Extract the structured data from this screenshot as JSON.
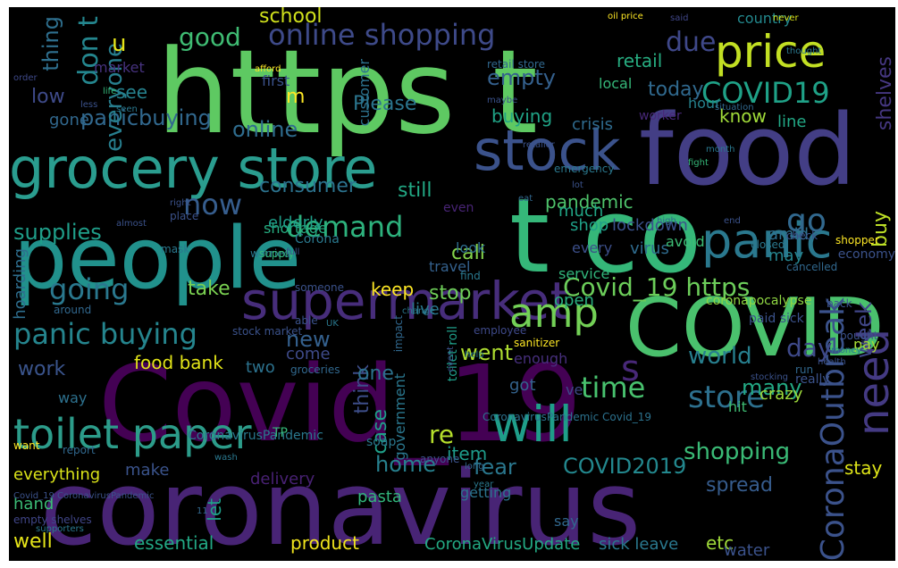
{
  "words": [
    {
      "text": "Covid_19",
      "color": "#440154"
    },
    {
      "text": "coronavirus",
      "color": "#482475"
    },
    {
      "text": "https t",
      "color": "#5ec962"
    },
    {
      "text": "food",
      "color": "#433e85"
    },
    {
      "text": "t co",
      "color": "#35b779"
    },
    {
      "text": "people",
      "color": "#21918c"
    },
    {
      "text": "grocery store",
      "color": "#2a9d8f"
    },
    {
      "text": "COVID",
      "color": "#4ac16d"
    },
    {
      "text": "stock",
      "color": "#3b528b"
    },
    {
      "text": "supermarket",
      "color": "#472d7b"
    },
    {
      "text": "price",
      "color": "#c2df23"
    },
    {
      "text": "toilet paper",
      "color": "#2c9c8a"
    },
    {
      "text": "will",
      "color": "#1f9e89"
    },
    {
      "text": "panic",
      "color": "#2a788e"
    },
    {
      "text": "amp",
      "color": "#73d056"
    },
    {
      "text": "need",
      "color": "#443a83"
    },
    {
      "text": "CoronaOutbreak",
      "color": "#3b528b"
    },
    {
      "text": "online shopping",
      "color": "#3e4a89"
    },
    {
      "text": "COVID19",
      "color": "#1fa187"
    },
    {
      "text": "demand",
      "color": "#2db27d"
    },
    {
      "text": "panic buying",
      "color": "#25858e"
    },
    {
      "text": "Covid_19 https",
      "color": "#6ccd5a"
    },
    {
      "text": "going",
      "color": "#2a788e"
    },
    {
      "text": "store",
      "color": "#2d708e"
    },
    {
      "text": "now",
      "color": "#365d8d"
    },
    {
      "text": "go",
      "color": "#31688e"
    },
    {
      "text": "time",
      "color": "#48c16e"
    },
    {
      "text": "s",
      "color": "#482878"
    },
    {
      "text": "shopping",
      "color": "#3aba76"
    },
    {
      "text": "world",
      "color": "#277f8e"
    },
    {
      "text": "day",
      "color": "#3e4989"
    },
    {
      "text": "COVID2019",
      "color": "#23888e"
    },
    {
      "text": "re",
      "color": "#b5de2b"
    },
    {
      "text": "fear",
      "color": "#2a778e"
    },
    {
      "text": "home",
      "color": "#27808e"
    },
    {
      "text": "item",
      "color": "#1e9b8a"
    },
    {
      "text": "case",
      "color": "#1f9f88"
    },
    {
      "text": "think",
      "color": "#3d4e8a"
    },
    {
      "text": "one",
      "color": "#2c728e"
    },
    {
      "text": "many",
      "color": "#23a983"
    },
    {
      "text": "week",
      "color": "#404688"
    },
    {
      "text": "buy",
      "color": "#bddf26"
    },
    {
      "text": "shelves",
      "color": "#453781"
    },
    {
      "text": "consumer",
      "color": "#2c738e"
    },
    {
      "text": "supplies",
      "color": "#1f9e89"
    },
    {
      "text": "still",
      "color": "#22a884"
    },
    {
      "text": "pandemic",
      "color": "#4ec36b"
    },
    {
      "text": "online",
      "color": "#2f6c8e"
    },
    {
      "text": "Please",
      "color": "#2b758e"
    },
    {
      "text": "buying",
      "color": "#20a386"
    },
    {
      "text": "panicbuying",
      "color": "#31688e"
    },
    {
      "text": "today",
      "color": "#30698e"
    },
    {
      "text": "know",
      "color": "#a0da39"
    },
    {
      "text": "line",
      "color": "#22a785"
    },
    {
      "text": "crisis",
      "color": "#2f6b8e"
    },
    {
      "text": "retail",
      "color": "#27ad81"
    },
    {
      "text": "empty",
      "color": "#34608d"
    },
    {
      "text": "due",
      "color": "#3f4889"
    },
    {
      "text": "good",
      "color": "#3fbc73"
    },
    {
      "text": "school",
      "color": "#d0e11c"
    },
    {
      "text": "everyone",
      "color": "#277e8e"
    },
    {
      "text": "don t",
      "color": "#24868e"
    },
    {
      "text": "thing",
      "color": "#2e6f8e"
    },
    {
      "text": "u",
      "color": "#e5e419"
    },
    {
      "text": "m",
      "color": "#fde725"
    },
    {
      "text": "see",
      "color": "#26828e"
    },
    {
      "text": "low",
      "color": "#3e4a89"
    },
    {
      "text": "gone",
      "color": "#31688e"
    },
    {
      "text": "first",
      "color": "#3b528b"
    },
    {
      "text": "market",
      "color": "#46327e"
    },
    {
      "text": "customer",
      "color": "#2c728e"
    },
    {
      "text": "worker",
      "color": "#482878"
    },
    {
      "text": "local",
      "color": "#35b779"
    },
    {
      "text": "hour",
      "color": "#26828e"
    },
    {
      "text": "country",
      "color": "#23898e"
    },
    {
      "text": "keep",
      "color": "#fde725"
    },
    {
      "text": "call",
      "color": "#84d44b"
    },
    {
      "text": "take",
      "color": "#7ad151"
    },
    {
      "text": "live",
      "color": "#2a788e"
    },
    {
      "text": "stop",
      "color": "#6ece58"
    },
    {
      "text": "open",
      "color": "#29af7f"
    },
    {
      "text": "shop",
      "color": "#1fa088"
    },
    {
      "text": "lockdown",
      "color": "#3b528b"
    },
    {
      "text": "amid",
      "color": "#2e6e8e"
    },
    {
      "text": "every",
      "color": "#3c4f8a"
    },
    {
      "text": "virus",
      "color": "#2f6b8e"
    },
    {
      "text": "much",
      "color": "#21a585"
    },
    {
      "text": "may",
      "color": "#25848e"
    },
    {
      "text": "avoid",
      "color": "#3dbc74"
    },
    {
      "text": "look",
      "color": "#2e6d8e"
    },
    {
      "text": "even",
      "color": "#482475"
    },
    {
      "text": "shortage",
      "color": "#26ad81"
    },
    {
      "text": "elderly",
      "color": "#1f9e89"
    },
    {
      "text": "service",
      "color": "#31b57b"
    },
    {
      "text": "Corona",
      "color": "#2a788e"
    },
    {
      "text": "travel",
      "color": "#34618d"
    },
    {
      "text": "hoarding",
      "color": "#2e6e8e"
    },
    {
      "text": "new",
      "color": "#34608d"
    },
    {
      "text": "two",
      "color": "#2c728e"
    },
    {
      "text": "went",
      "color": "#addc30"
    },
    {
      "text": "come",
      "color": "#3e4a89"
    },
    {
      "text": "work",
      "color": "#3a548c"
    },
    {
      "text": "food bank",
      "color": "#e2e418"
    },
    {
      "text": "enough",
      "color": "#472f7d"
    },
    {
      "text": "government",
      "color": "#2a778e"
    },
    {
      "text": "got",
      "color": "#33638d"
    },
    {
      "text": "crazy",
      "color": "#9dd93b"
    },
    {
      "text": "way",
      "color": "#2d718e"
    },
    {
      "text": "ve",
      "color": "#3e4989"
    },
    {
      "text": "pay",
      "color": "#a8db34"
    },
    {
      "text": "hit",
      "color": "#3ebc73"
    },
    {
      "text": "stay",
      "color": "#dde318"
    },
    {
      "text": "delivery",
      "color": "#482173"
    },
    {
      "text": "everything",
      "color": "#dae319"
    },
    {
      "text": "make",
      "color": "#3a538b"
    },
    {
      "text": "pasta",
      "color": "#31b57b"
    },
    {
      "text": "getting",
      "color": "#2c738e"
    },
    {
      "text": "spread",
      "color": "#365c8d"
    },
    {
      "text": "hand",
      "color": "#3bbb75"
    },
    {
      "text": "let",
      "color": "#1fa088"
    },
    {
      "text": "well",
      "color": "#e5e419"
    },
    {
      "text": "essential",
      "color": "#22a884"
    },
    {
      "text": "product",
      "color": "#f1e51d"
    },
    {
      "text": "CoronaVirusUpdate",
      "color": "#23a983"
    },
    {
      "text": "sick leave",
      "color": "#2a788e"
    },
    {
      "text": "etc",
      "color": "#9fda3a"
    },
    {
      "text": "water",
      "color": "#3b528b"
    },
    {
      "text": "say",
      "color": "#31688e"
    },
    {
      "text": "CoronavirusPandemic",
      "color": "#2a788e"
    },
    {
      "text": "CoronavirusPandemic Covid_19",
      "color": "#2c728e"
    },
    {
      "text": "paid sick",
      "color": "#3b528b"
    },
    {
      "text": "coronapocalypse",
      "color": "#90d743"
    },
    {
      "text": "stock market",
      "color": "#3b528b"
    },
    {
      "text": "empty shelves",
      "color": "#404688"
    },
    {
      "text": "toilet roll",
      "color": "#1f9e89"
    },
    {
      "text": "retail store",
      "color": "#31688e"
    },
    {
      "text": "oil price",
      "color": "#fde725"
    },
    {
      "text": "said",
      "color": "#404688"
    },
    {
      "text": "never",
      "color": "#d8e219"
    },
    {
      "text": "afford",
      "color": "#fde725"
    },
    {
      "text": "order",
      "color": "#3e4989"
    },
    {
      "text": "less",
      "color": "#3b528b"
    },
    {
      "text": "life",
      "color": "#35b779"
    },
    {
      "text": "seen",
      "color": "#2a788e"
    },
    {
      "text": "maybe",
      "color": "#3b528b"
    },
    {
      "text": "situation",
      "color": "#31688e"
    },
    {
      "text": "thought",
      "color": "#2a788e"
    },
    {
      "text": "retailer",
      "color": "#3b528b"
    },
    {
      "text": "month",
      "color": "#2a788e"
    },
    {
      "text": "fight",
      "color": "#35b779"
    },
    {
      "text": "emergency",
      "color": "#2a788e"
    },
    {
      "text": "lot",
      "color": "#3b528b"
    },
    {
      "text": "eat",
      "color": "#31688e"
    },
    {
      "text": "right",
      "color": "#3b528b"
    },
    {
      "text": "place",
      "color": "#3b528b"
    },
    {
      "text": "almost",
      "color": "#3b528b"
    },
    {
      "text": "mask",
      "color": "#2a788e"
    },
    {
      "text": "worried",
      "color": "#2a788e"
    },
    {
      "text": "supply",
      "color": "#35b779"
    },
    {
      "text": "high",
      "color": "#31688e"
    },
    {
      "text": "end",
      "color": "#3b528b"
    },
    {
      "text": "check",
      "color": "#3b528b"
    },
    {
      "text": "closed",
      "color": "#2a788e"
    },
    {
      "text": "shopper",
      "color": "#fde725"
    },
    {
      "text": "economy",
      "color": "#3b528b"
    },
    {
      "text": "cancelled",
      "color": "#31688e"
    },
    {
      "text": "someone",
      "color": "#3b528b"
    },
    {
      "text": "find",
      "color": "#2a788e"
    },
    {
      "text": "full",
      "color": "#3b528b"
    },
    {
      "text": "impact",
      "color": "#31688e"
    },
    {
      "text": "back",
      "color": "#3b528b"
    },
    {
      "text": "change",
      "color": "#2a788e"
    },
    {
      "text": "around",
      "color": "#31688e"
    },
    {
      "text": "able",
      "color": "#3b528b"
    },
    {
      "text": "UK",
      "color": "#2a788e"
    },
    {
      "text": "employee",
      "color": "#3e4989"
    },
    {
      "text": "sanitizer",
      "color": "#fde725"
    },
    {
      "text": "bought",
      "color": "#3b528b"
    },
    {
      "text": "money",
      "color": "#2a788e"
    },
    {
      "text": "health",
      "color": "#3b528b"
    },
    {
      "text": "run",
      "color": "#31688e"
    },
    {
      "text": "event",
      "color": "#3b528b"
    },
    {
      "text": "help",
      "color": "#2a788e"
    },
    {
      "text": "groceries",
      "color": "#31688e"
    },
    {
      "text": "really",
      "color": "#3b528b"
    },
    {
      "text": "soap",
      "color": "#2a788e"
    },
    {
      "text": "TP",
      "color": "#35b779"
    },
    {
      "text": "anyone",
      "color": "#3b528b"
    },
    {
      "text": "long",
      "color": "#31688e"
    },
    {
      "text": "year",
      "color": "#2a788e"
    },
    {
      "text": "want",
      "color": "#fde725"
    },
    {
      "text": "stocking",
      "color": "#3b528b"
    },
    {
      "text": "report",
      "color": "#31688e"
    },
    {
      "text": "wash",
      "color": "#2a788e"
    },
    {
      "text": "Covid_19 CoronavirusPandemic",
      "color": "#3b528b"
    },
    {
      "text": "11",
      "color": "#31688e"
    },
    {
      "text": "supporters",
      "color": "#2a788e"
    }
  ]
}
